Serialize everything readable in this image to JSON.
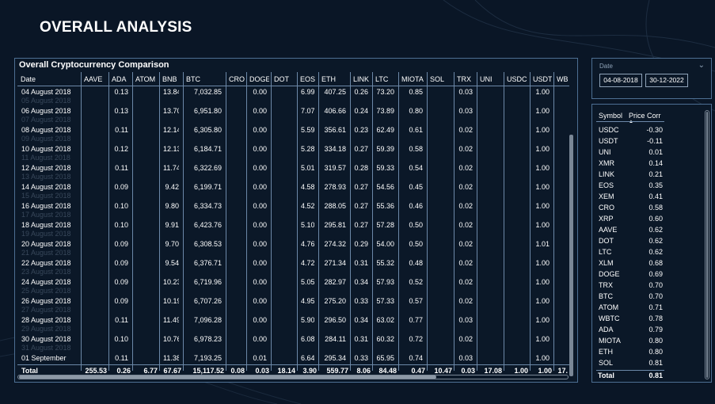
{
  "page": {
    "title": "OVERALL ANALYSIS"
  },
  "comparison": {
    "title": "Overall Cryptocurrency Comparison",
    "columns": [
      "Date",
      "AAVE",
      "ADA",
      "ATOM",
      "BNB",
      "BTC",
      "CRO",
      "DOGE",
      "DOT",
      "EOS",
      "ETH",
      "LINK",
      "LTC",
      "MIOTA",
      "SOL",
      "TRX",
      "UNI",
      "USDC",
      "USDT",
      "WB"
    ],
    "rows": [
      [
        "04 August 2018",
        "",
        "0.13",
        "",
        "13.84",
        "7,032.85",
        "",
        "0.00",
        "",
        "6.99",
        "407.25",
        "0.26",
        "73.20",
        "0.85",
        "",
        "0.03",
        "",
        "",
        "1.00",
        ""
      ],
      [
        "06 August 2018",
        "",
        "0.13",
        "",
        "13.70",
        "6,951.80",
        "",
        "0.00",
        "",
        "7.07",
        "406.66",
        "0.24",
        "73.89",
        "0.80",
        "",
        "0.03",
        "",
        "",
        "1.00",
        ""
      ],
      [
        "08 August 2018",
        "",
        "0.11",
        "",
        "12.14",
        "6,305.80",
        "",
        "0.00",
        "",
        "5.59",
        "356.61",
        "0.23",
        "62.49",
        "0.61",
        "",
        "0.02",
        "",
        "",
        "1.00",
        ""
      ],
      [
        "10 August 2018",
        "",
        "0.12",
        "",
        "12.13",
        "6,184.71",
        "",
        "0.00",
        "",
        "5.28",
        "334.18",
        "0.27",
        "59.39",
        "0.58",
        "",
        "0.02",
        "",
        "",
        "1.00",
        ""
      ],
      [
        "12 August 2018",
        "",
        "0.11",
        "",
        "11.74",
        "6,322.69",
        "",
        "0.00",
        "",
        "5.01",
        "319.57",
        "0.28",
        "59.33",
        "0.54",
        "",
        "0.02",
        "",
        "",
        "1.00",
        ""
      ],
      [
        "14 August 2018",
        "",
        "0.09",
        "",
        "9.42",
        "6,199.71",
        "",
        "0.00",
        "",
        "4.58",
        "278.93",
        "0.27",
        "54.56",
        "0.45",
        "",
        "0.02",
        "",
        "",
        "1.00",
        ""
      ],
      [
        "16 August 2018",
        "",
        "0.10",
        "",
        "9.80",
        "6,334.73",
        "",
        "0.00",
        "",
        "4.52",
        "288.05",
        "0.27",
        "55.36",
        "0.46",
        "",
        "0.02",
        "",
        "",
        "1.00",
        ""
      ],
      [
        "18 August 2018",
        "",
        "0.10",
        "",
        "9.91",
        "6,423.76",
        "",
        "0.00",
        "",
        "5.10",
        "295.81",
        "0.27",
        "57.28",
        "0.50",
        "",
        "0.02",
        "",
        "",
        "1.00",
        ""
      ],
      [
        "20 August 2018",
        "",
        "0.09",
        "",
        "9.70",
        "6,308.53",
        "",
        "0.00",
        "",
        "4.76",
        "274.32",
        "0.29",
        "54.00",
        "0.50",
        "",
        "0.02",
        "",
        "",
        "1.01",
        ""
      ],
      [
        "22 August 2018",
        "",
        "0.09",
        "",
        "9.54",
        "6,376.71",
        "",
        "0.00",
        "",
        "4.72",
        "271.34",
        "0.31",
        "55.32",
        "0.48",
        "",
        "0.02",
        "",
        "",
        "1.00",
        ""
      ],
      [
        "24 August 2018",
        "",
        "0.09",
        "",
        "10.23",
        "6,719.96",
        "",
        "0.00",
        "",
        "5.05",
        "282.97",
        "0.34",
        "57.93",
        "0.52",
        "",
        "0.02",
        "",
        "",
        "1.00",
        ""
      ],
      [
        "26 August 2018",
        "",
        "0.09",
        "",
        "10.19",
        "6,707.26",
        "",
        "0.00",
        "",
        "4.95",
        "275.20",
        "0.33",
        "57.33",
        "0.57",
        "",
        "0.02",
        "",
        "",
        "1.00",
        ""
      ],
      [
        "28 August 2018",
        "",
        "0.11",
        "",
        "11.49",
        "7,096.28",
        "",
        "0.00",
        "",
        "5.90",
        "296.50",
        "0.34",
        "63.02",
        "0.77",
        "",
        "0.03",
        "",
        "",
        "1.00",
        ""
      ],
      [
        "30 August 2018",
        "",
        "0.10",
        "",
        "10.76",
        "6,978.23",
        "",
        "0.00",
        "",
        "6.08",
        "284.11",
        "0.31",
        "60.32",
        "0.72",
        "",
        "0.02",
        "",
        "",
        "1.00",
        ""
      ],
      [
        "01 September",
        "",
        "0.11",
        "",
        "11.38",
        "7,193.25",
        "",
        "0.01",
        "",
        "6.64",
        "295.34",
        "0.33",
        "65.95",
        "0.74",
        "",
        "0.03",
        "",
        "",
        "1.00",
        ""
      ]
    ],
    "ghost_rows": [
      "05 August 2018",
      "07 August 2018",
      "09 August 2018",
      "11 August 2018",
      "13 August 2018",
      "15 August 2018",
      "17 August 2018",
      "19 August 2018",
      "21 August 2018",
      "23 August 2018",
      "25 August 2018",
      "27 August 2018",
      "29 August 2018",
      "31 August 2018"
    ],
    "totals": [
      "Total",
      "255.53",
      "0.26",
      "6.77",
      "67.67",
      "15,117.52",
      "0.08",
      "0.03",
      "18.14",
      "3.90",
      "559.77",
      "8.06",
      "84.48",
      "0.47",
      "10.47",
      "0.03",
      "17.08",
      "1.00",
      "1.00",
      "17."
    ]
  },
  "date_slicer": {
    "label": "Date",
    "start": "04-08-2018",
    "end": "30-12-2022"
  },
  "correlation": {
    "col_symbol": "Symbol",
    "col_value": "Price Corr",
    "rows": [
      [
        "USDC",
        "-0.30"
      ],
      [
        "USDT",
        "-0.11"
      ],
      [
        "UNI",
        "0.01"
      ],
      [
        "XMR",
        "0.14"
      ],
      [
        "LINK",
        "0.21"
      ],
      [
        "EOS",
        "0.35"
      ],
      [
        "XEM",
        "0.41"
      ],
      [
        "CRO",
        "0.58"
      ],
      [
        "XRP",
        "0.60"
      ],
      [
        "AAVE",
        "0.62"
      ],
      [
        "DOT",
        "0.62"
      ],
      [
        "LTC",
        "0.62"
      ],
      [
        "XLM",
        "0.68"
      ],
      [
        "DOGE",
        "0.69"
      ],
      [
        "TRX",
        "0.70"
      ],
      [
        "BTC",
        "0.70"
      ],
      [
        "ATOM",
        "0.71"
      ],
      [
        "WBTC",
        "0.78"
      ],
      [
        "ADA",
        "0.79"
      ],
      [
        "MIOTA",
        "0.80"
      ],
      [
        "ETH",
        "0.80"
      ],
      [
        "SOL",
        "0.81"
      ]
    ],
    "total_label": "Total",
    "total_value": "0.81"
  }
}
